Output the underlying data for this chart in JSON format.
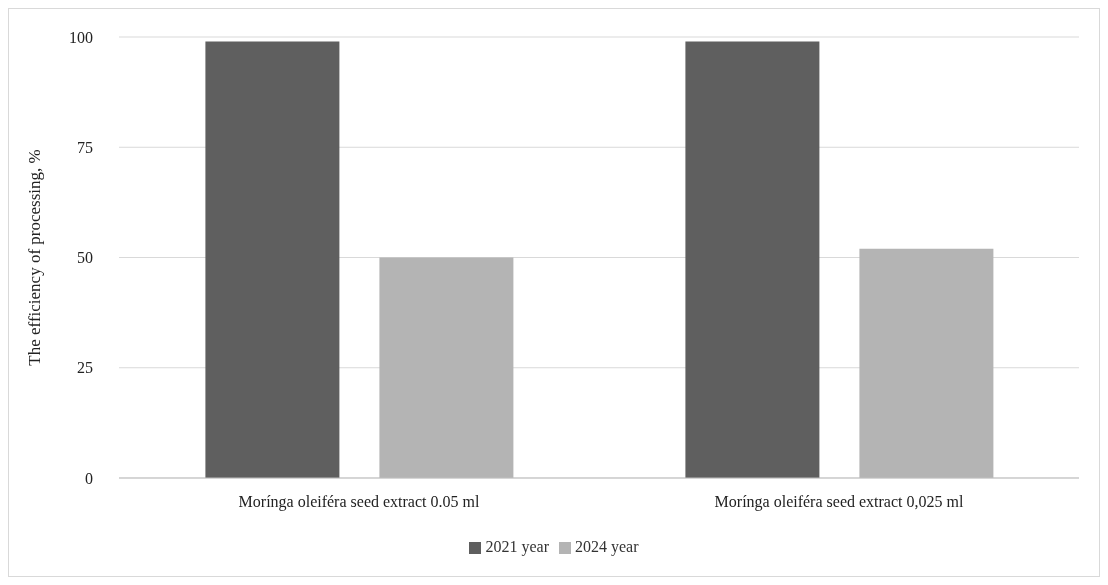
{
  "chart_data": {
    "type": "bar",
    "ylabel": "The efficiency of processing, %",
    "categories": [
      "Morínga oleiféra seed extract 0.05 ml",
      "Morínga oleiféra seed extract 0,025 ml"
    ],
    "series": [
      {
        "name": "2021 year",
        "color": "#5f5f5f",
        "values": [
          99,
          99
        ]
      },
      {
        "name": "2024 year",
        "color": "#b4b4b4",
        "values": [
          50,
          52
        ]
      }
    ],
    "ylim": [
      0,
      100
    ],
    "yticks": [
      0,
      25,
      50,
      75,
      100
    ],
    "grid": "y",
    "legend": "bottom"
  }
}
